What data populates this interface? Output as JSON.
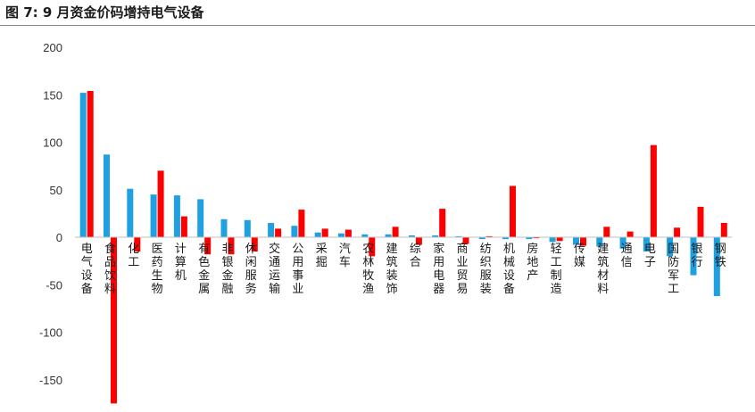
{
  "figure_title": "图 7:  9 月资金价码增持电气设备",
  "colors": {
    "series_a": "#1fa0e0",
    "series_b": "#ff0000",
    "axis": "#bfbfbf"
  },
  "chart_data": {
    "type": "bar",
    "title": "",
    "xlabel": "",
    "ylabel": "",
    "ylim": [
      -175,
      200
    ],
    "yticks": [
      200,
      150,
      100,
      50,
      0,
      -50,
      -100,
      -150
    ],
    "grid": false,
    "legend": "none",
    "categories": [
      "电气设备",
      "食品饮料",
      "化工",
      "医药生物",
      "计算机",
      "有色金属",
      "非银金融",
      "休闲服务",
      "交通运输",
      "公用事业",
      "采掘",
      "汽车",
      "农林牧渔",
      "建筑装饰",
      "综合",
      "家用电器",
      "商业贸易",
      "纺织服装",
      "机械设备",
      "房地产",
      "轻工制造",
      "传媒",
      "建筑材料",
      "通信",
      "电子",
      "国防军工",
      "银行",
      "钢铁"
    ],
    "series": [
      {
        "values": [
          152,
          87,
          51,
          45,
          44,
          40,
          19,
          18,
          15,
          12,
          5,
          4,
          3,
          3,
          2,
          2,
          1,
          -2,
          -2,
          -2,
          -5,
          -8,
          -10,
          -12,
          -15,
          -20,
          -40,
          -62
        ]
      },
      {
        "values": [
          154,
          -175,
          -15,
          70,
          22,
          -18,
          -18,
          -15,
          9,
          29,
          9,
          8,
          -20,
          11,
          -8,
          30,
          -7,
          1,
          54,
          -1,
          -4,
          -9,
          11,
          6,
          97,
          10,
          32,
          15
        ]
      }
    ]
  }
}
